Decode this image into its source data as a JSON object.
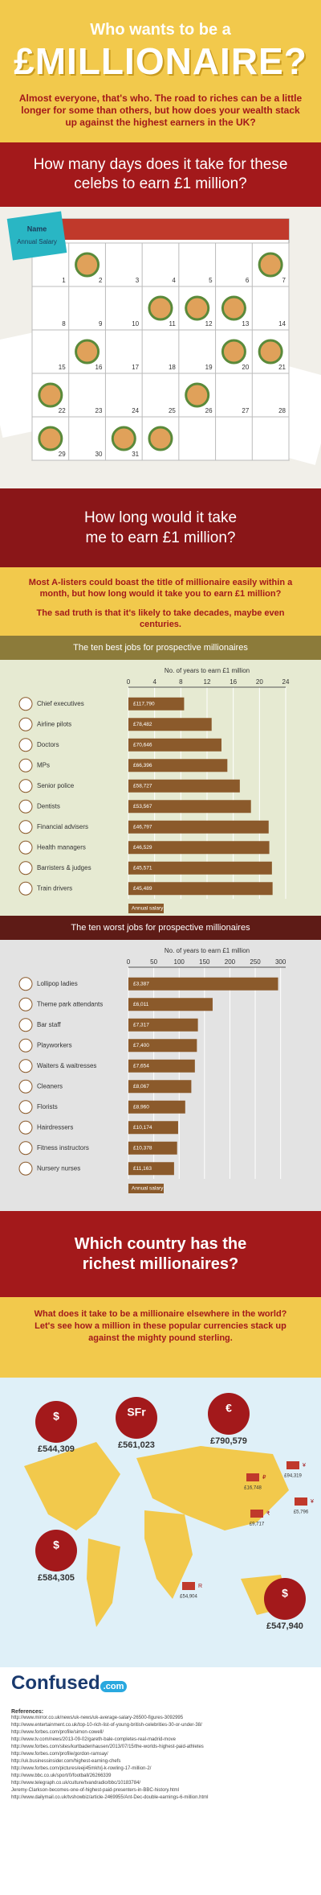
{
  "header": {
    "kicker": "Who wants to be a",
    "title": "£MILLIONAIRE?",
    "intro": "Almost everyone, that's who. The road to riches can be a little longer for some than others, but how does your wealth stack up against the highest earners in the UK?"
  },
  "celebs": {
    "heading": "How many days does it take for these celebs to earn £1 million?",
    "note_name": "Name",
    "note_salary": "Annual Salary",
    "days": [
      1,
      2,
      3,
      4,
      5,
      6,
      7,
      8,
      9,
      10,
      11,
      12,
      13,
      14,
      15,
      16,
      17,
      18,
      19,
      20,
      21,
      22,
      23,
      24,
      25,
      26,
      27,
      28,
      29,
      30,
      31
    ]
  },
  "me": {
    "heading": "How long would it take me to earn £1 million?",
    "para1": "Most A-listers could boast the title of millionaire easily within a month, but how long would it take you to earn £1 million?",
    "para2": "The sad truth is that it's likely to take decades, maybe even centuries."
  },
  "chart_data": [
    {
      "type": "bar",
      "title": "The ten best jobs for prospective millionaires",
      "axis_label": "No. of years to earn £1 million",
      "legend": "Annual salary",
      "color": "#8b5a2b",
      "grid": true,
      "categories": [
        "Chief executives",
        "Airline pilots",
        "Doctors",
        "MPs",
        "Senior police",
        "Dentists",
        "Financial advisers",
        "Health managers",
        "Barristers & judges",
        "Train drivers"
      ],
      "values": [
        8.5,
        12.7,
        14.2,
        15.1,
        17,
        18.7,
        21.4,
        21.5,
        21.9,
        22
      ],
      "salaries": [
        "£117,790",
        "£78,482",
        "£70,646",
        "£66,396",
        "£58,727",
        "£53,567",
        "£46,797",
        "£46,529",
        "£45,571",
        "£45,489"
      ],
      "xlim": [
        0,
        24
      ],
      "xticks": [
        0,
        4,
        8,
        12,
        16,
        20,
        24
      ]
    },
    {
      "type": "bar",
      "title": "The ten worst jobs for prospective millionaires",
      "axis_label": "No. of years to earn £1 million",
      "legend": "Annual salary",
      "color": "#8b5a2b",
      "grid": true,
      "categories": [
        "Lollipop ladies",
        "Theme park attendants",
        "Bar staff",
        "Playworkers",
        "Waiters & waitresses",
        "Cleaners",
        "Florists",
        "Hairdressers",
        "Fitness instructors",
        "Nursery nurses"
      ],
      "values": [
        295,
        166,
        137,
        135,
        131,
        124,
        112,
        98,
        96,
        90
      ],
      "salaries": [
        "£3,387",
        "£6,011",
        "£7,317",
        "£7,400",
        "£7,654",
        "£8,067",
        "£8,960",
        "£10,174",
        "£10,378",
        "£11,163"
      ],
      "xlim": [
        0,
        310
      ],
      "xticks": [
        0,
        50,
        100,
        150,
        200,
        250,
        300
      ]
    }
  ],
  "world": {
    "heading": "Which country has the richest millionaires?",
    "intro": "What does it take to be a millionaire elsewhere in the world? Let's see how a million in these popular currencies stack up against the mighty pound sterling.",
    "currencies": [
      {
        "symbol": "$",
        "value": "£544,309"
      },
      {
        "symbol": "SFr",
        "value": "£561,023"
      },
      {
        "symbol": "€",
        "value": "£790,579"
      },
      {
        "symbol": "₽",
        "value": "£16,748"
      },
      {
        "symbol": "¥",
        "value": "£94,319"
      },
      {
        "symbol": "¥",
        "value": "£5,796"
      },
      {
        "symbol": "₹",
        "value": "£9,717"
      },
      {
        "symbol": "$",
        "value": "£584,305"
      },
      {
        "symbol": "R",
        "value": "£54,904"
      },
      {
        "symbol": "$",
        "value": "£547,940"
      }
    ]
  },
  "footer": {
    "logo": "Confused",
    "logo_suffix": ".com",
    "refs_title": "References:",
    "refs": [
      "http://www.mirror.co.uk/news/uk-news/uk-average-salary-26500-figures-3092995",
      "http://www.entertainment.co.uk/top-10-rich-list-of-young-british-celebrities-30-or-under-38/",
      "http://www.forbes.com/profile/simon-cowell/",
      "http://www.tv.com/news/2013-09-02/gareth-bale-completes-real-madrid-move",
      "http://www.forbes.com/sites/kurtbadenhausen/2013/07/15/the-worlds-highest-paid-athletes",
      "http://www.forbes.com/profile/gordon-ramsay/",
      "http://uk.businessinsider.com/highest-earning-chefs",
      "http://www.forbes.com/pictures/eeji45mkh/j-k-rowling-17-million-2/",
      "http://www.bbc.co.uk/sport/0/football/26266339",
      "http://www.telegraph.co.uk/culture/tvandradio/bbc/10183784/",
      "Jeremy-Clarkson-becomes-one-of-highest-paid-presenters-in-BBC-history.html",
      "http://www.dailymail.co.uk/tvshowbiz/article-2469955/Ant-Dec-double-earnings-6-million.html"
    ]
  }
}
